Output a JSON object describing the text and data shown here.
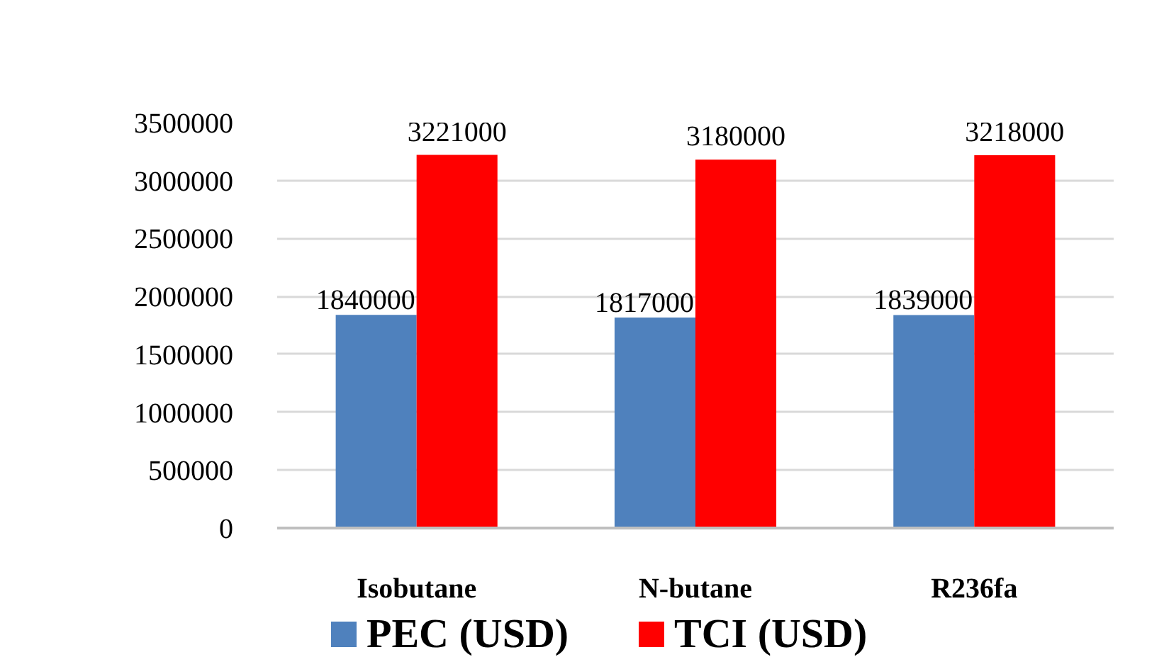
{
  "chart_data": {
    "type": "bar",
    "categories": [
      "Isobutane",
      "N-butane",
      "R236fa"
    ],
    "series": [
      {
        "name": "PEC (USD)",
        "color": "#4f81bd",
        "values": [
          1840000,
          1817000,
          1839000
        ]
      },
      {
        "name": "TCI (USD)",
        "color": "#ff0000",
        "values": [
          3221000,
          3180000,
          3218000
        ]
      }
    ],
    "ylim": [
      0,
      3500000
    ],
    "yticks": [
      0,
      500000,
      1000000,
      1500000,
      2000000,
      2500000,
      3000000,
      3500000
    ],
    "grid": "y",
    "legend": "bottom",
    "data_labels": true
  }
}
